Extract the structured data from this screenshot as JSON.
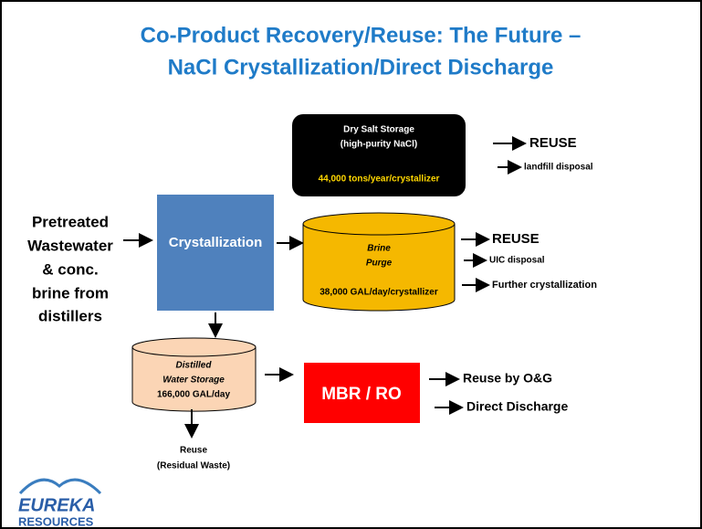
{
  "title": {
    "line1": "Co-Product Recovery/Reuse: The Future –",
    "line2": "NaCl Crystallization/Direct Discharge"
  },
  "input": {
    "lines": [
      "Pretreated",
      "Wastewater",
      "& conc.",
      "brine from",
      "distillers"
    ]
  },
  "crystallization": {
    "label": "Crystallization"
  },
  "dry_salt": {
    "lines": [
      "Dry Salt Storage",
      "(high-purity NaCl)"
    ],
    "amount": "44,000 tons/year/crystallizer",
    "outputs": [
      "REUSE",
      "landfill disposal"
    ]
  },
  "brine": {
    "lines": [
      "Brine",
      "Purge"
    ],
    "amount": "38,000 GAL/day/crystallizer",
    "outputs": [
      "REUSE",
      "UIC disposal",
      "Further crystallization"
    ]
  },
  "water": {
    "lines": [
      "Distilled",
      "Water Storage",
      "166,000 GAL/day"
    ],
    "outputs": [
      "Reuse",
      "(Residual Waste)"
    ]
  },
  "mbr": {
    "label": "MBR / RO",
    "outputs": [
      "Reuse by O&G",
      "Direct Discharge"
    ]
  },
  "logo": {
    "line1": "EUREKA",
    "line2": "RESOURCES"
  }
}
